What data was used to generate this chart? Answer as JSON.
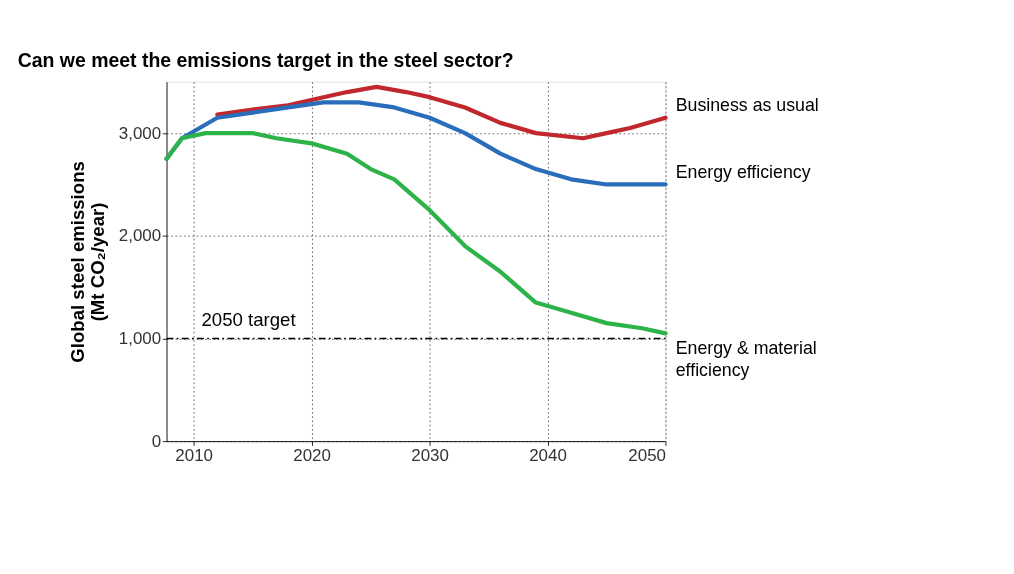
{
  "chart_data": {
    "type": "line",
    "title": "Can we meet the emissions target in the steel sector?",
    "ylabel": "Global steel emissions (Mt CO₂/year)",
    "xlim": [
      2007.7,
      2050
    ],
    "xticks": [
      2010,
      2020,
      2030,
      2040,
      2050
    ],
    "ylim": [
      0,
      3500
    ],
    "yticks": [
      0,
      {
        "value": 1000,
        "label": "1,000"
      },
      {
        "value": 2000,
        "label": "2,000"
      },
      {
        "value": 3000,
        "label": "3,000"
      }
    ],
    "grid": true,
    "legend": false,
    "ref_lines": [
      {
        "axis": "y",
        "value": 1000,
        "label": "2050 target",
        "color": "#000000",
        "line_style": "dashdot"
      }
    ],
    "series": [
      {
        "name": "Business as usual",
        "color": "#c0282d",
        "x": [
          2012,
          2015,
          2018,
          2021,
          2023,
          2025.5,
          2028,
          2030,
          2033,
          2036,
          2039,
          2043,
          2045,
          2047,
          2050
        ],
        "values": [
          3180,
          3230,
          3270,
          3350,
          3400,
          3450,
          3400,
          3350,
          3250,
          3100,
          3000,
          2950,
          3000,
          3050,
          3150
        ]
      },
      {
        "name": "Energy efficiency",
        "color": "#2a6ebb",
        "x": [
          2007.7,
          2009,
          2012,
          2015,
          2018,
          2021,
          2024,
          2027,
          2030,
          2033,
          2036,
          2039,
          2042,
          2045,
          2048,
          2050
        ],
        "values": [
          2750,
          2950,
          3150,
          3200,
          3250,
          3300,
          3300,
          3250,
          3150,
          3000,
          2800,
          2650,
          2550,
          2500,
          2500,
          2500
        ]
      },
      {
        "name": "Energy & material efficiency",
        "color": "#2db34a",
        "x": [
          2007.7,
          2009,
          2011,
          2015,
          2017,
          2020,
          2023,
          2025,
          2027,
          2030,
          2033,
          2036,
          2039,
          2042,
          2045,
          2048,
          2050
        ],
        "values": [
          2750,
          2950,
          3000,
          3000,
          2950,
          2900,
          2800,
          2650,
          2550,
          2250,
          1900,
          1650,
          1350,
          1250,
          1150,
          1100,
          1050
        ]
      }
    ]
  }
}
